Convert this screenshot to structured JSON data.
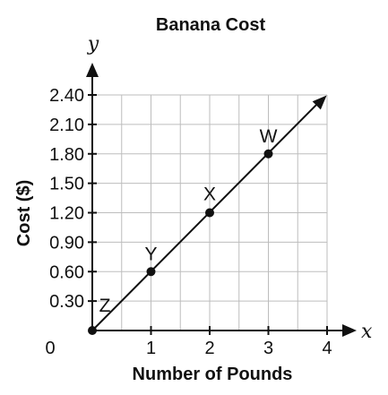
{
  "chart_data": {
    "type": "line",
    "title": "Banana Cost",
    "xlabel": "Number of Pounds",
    "ylabel": "Cost ($)",
    "x_axis_var": "x",
    "y_axis_var": "y",
    "origin_label": "0",
    "xlim": [
      0,
      4
    ],
    "ylim": [
      0,
      2.4
    ],
    "grid": true,
    "x_ticks": [
      "1",
      "2",
      "3",
      "4"
    ],
    "x_tick_values": [
      1,
      2,
      3,
      4
    ],
    "y_ticks": [
      "0.30",
      "0.60",
      "0.90",
      "1.20",
      "1.50",
      "1.80",
      "2.10",
      "2.40"
    ],
    "y_tick_values": [
      0.3,
      0.6,
      0.9,
      1.2,
      1.5,
      1.8,
      2.1,
      2.4
    ],
    "points": [
      {
        "label": "Z",
        "x": 0,
        "y": 0
      },
      {
        "label": "Y",
        "x": 1,
        "y": 0.6
      },
      {
        "label": "X",
        "x": 2,
        "y": 1.2
      },
      {
        "label": "W",
        "x": 3,
        "y": 1.8
      }
    ],
    "line": {
      "slope": 0.6,
      "intercept": 0,
      "arrow": true
    }
  }
}
